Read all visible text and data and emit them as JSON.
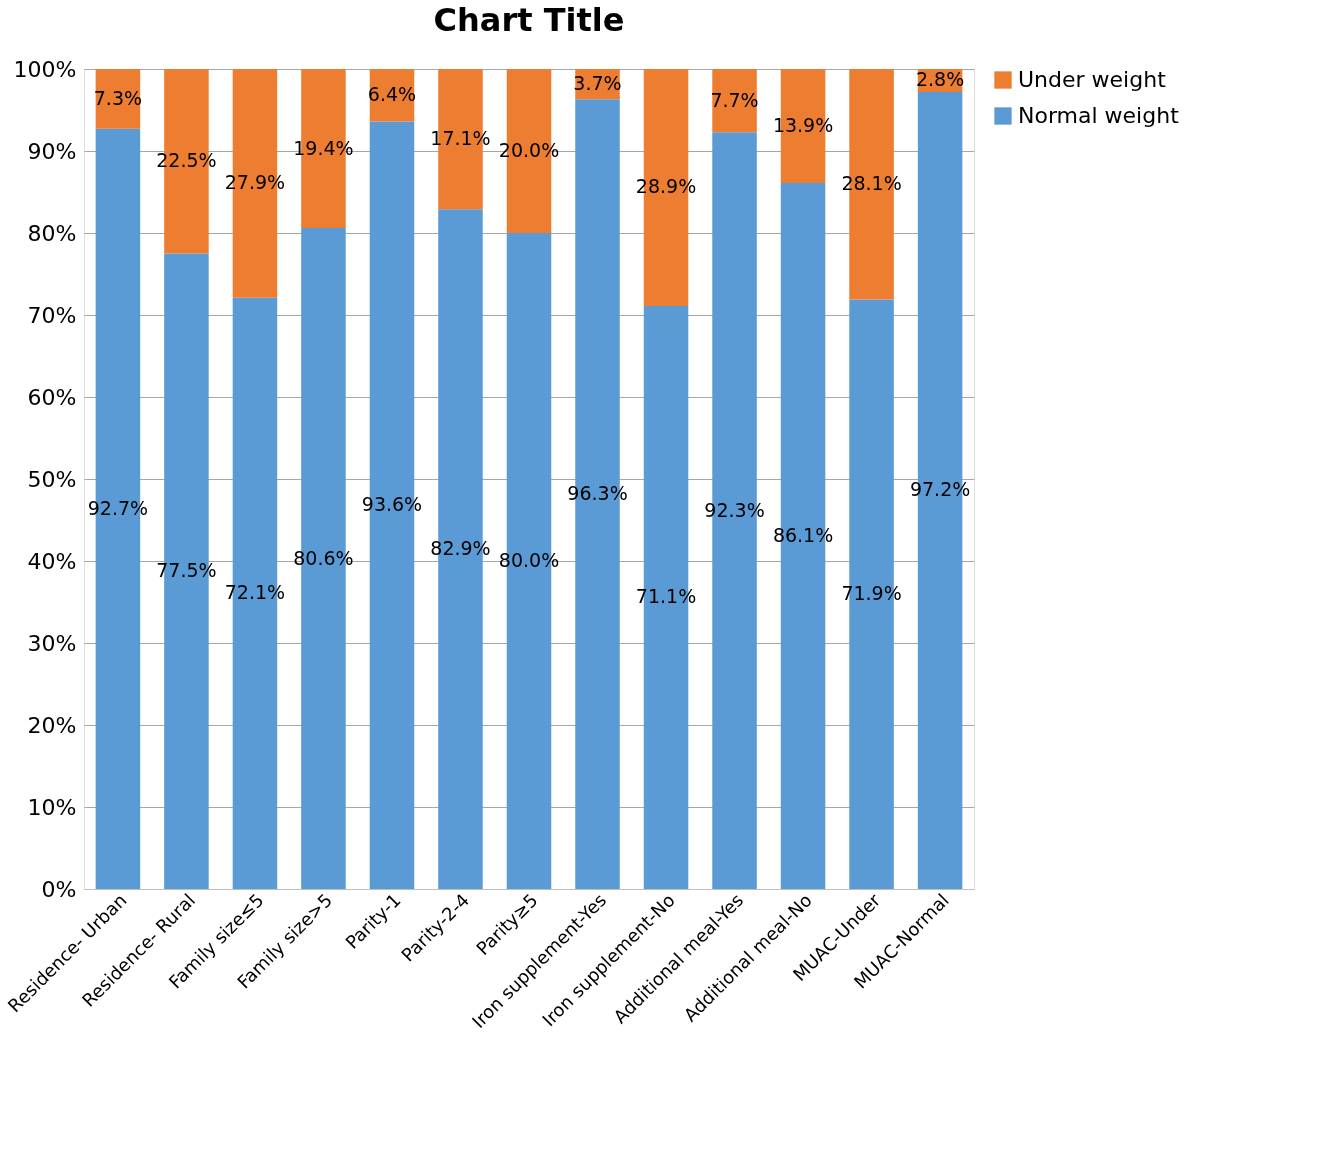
{
  "chart_data": {
    "type": "bar",
    "title": "Chart Title",
    "stacked": true,
    "categories": [
      "Residence- Urban",
      "Residence- Rural",
      "Family size≤5",
      "Family size>5",
      "Parity-1",
      "Parity-2-4",
      "Parity≥5",
      "Iron supplement-Yes",
      "Iron supplement-No",
      "Additional meal-Yes",
      "Additional meal-No",
      "MUAC-Under",
      "MUAC-Normal"
    ],
    "series": [
      {
        "name": "Normal weight",
        "color": "#5b9bd5",
        "values": [
          92.7,
          77.5,
          72.1,
          80.6,
          93.6,
          82.9,
          80.0,
          96.3,
          71.1,
          92.3,
          86.1,
          71.9,
          97.2
        ],
        "value_labels": [
          "92.7%",
          "77.5%",
          "72.1%",
          "80.6%",
          "93.6%",
          "82.9%",
          "80.0%",
          "96.3%",
          "71.1%",
          "92.3%",
          "86.1%",
          "71.9%",
          "97.2%"
        ]
      },
      {
        "name": "Under weight",
        "color": "#ed7d31",
        "values": [
          7.3,
          22.5,
          27.9,
          19.4,
          6.4,
          17.1,
          20.0,
          3.7,
          28.9,
          7.7,
          13.9,
          28.1,
          2.8
        ],
        "value_labels": [
          "7.3%",
          "22.5%",
          "27.9%",
          "19.4%",
          "6.4%",
          "17.1%",
          "20.0%",
          "3.7%",
          "28.9%",
          "7.7%",
          "13.9%",
          "28.1%",
          "2.8%"
        ]
      }
    ],
    "ylim": [
      0,
      100
    ],
    "yticks": [
      {
        "value": 0,
        "label": "0%"
      },
      {
        "value": 10,
        "label": "10%"
      },
      {
        "value": 20,
        "label": "20%"
      },
      {
        "value": 30,
        "label": "30%"
      },
      {
        "value": 40,
        "label": "40%"
      },
      {
        "value": 50,
        "label": "50%"
      },
      {
        "value": 60,
        "label": "60%"
      },
      {
        "value": 70,
        "label": "70%"
      },
      {
        "value": 80,
        "label": "80%"
      },
      {
        "value": 90,
        "label": "90%"
      },
      {
        "value": 100,
        "label": "100%"
      }
    ],
    "grid": "y",
    "legend": "right"
  }
}
